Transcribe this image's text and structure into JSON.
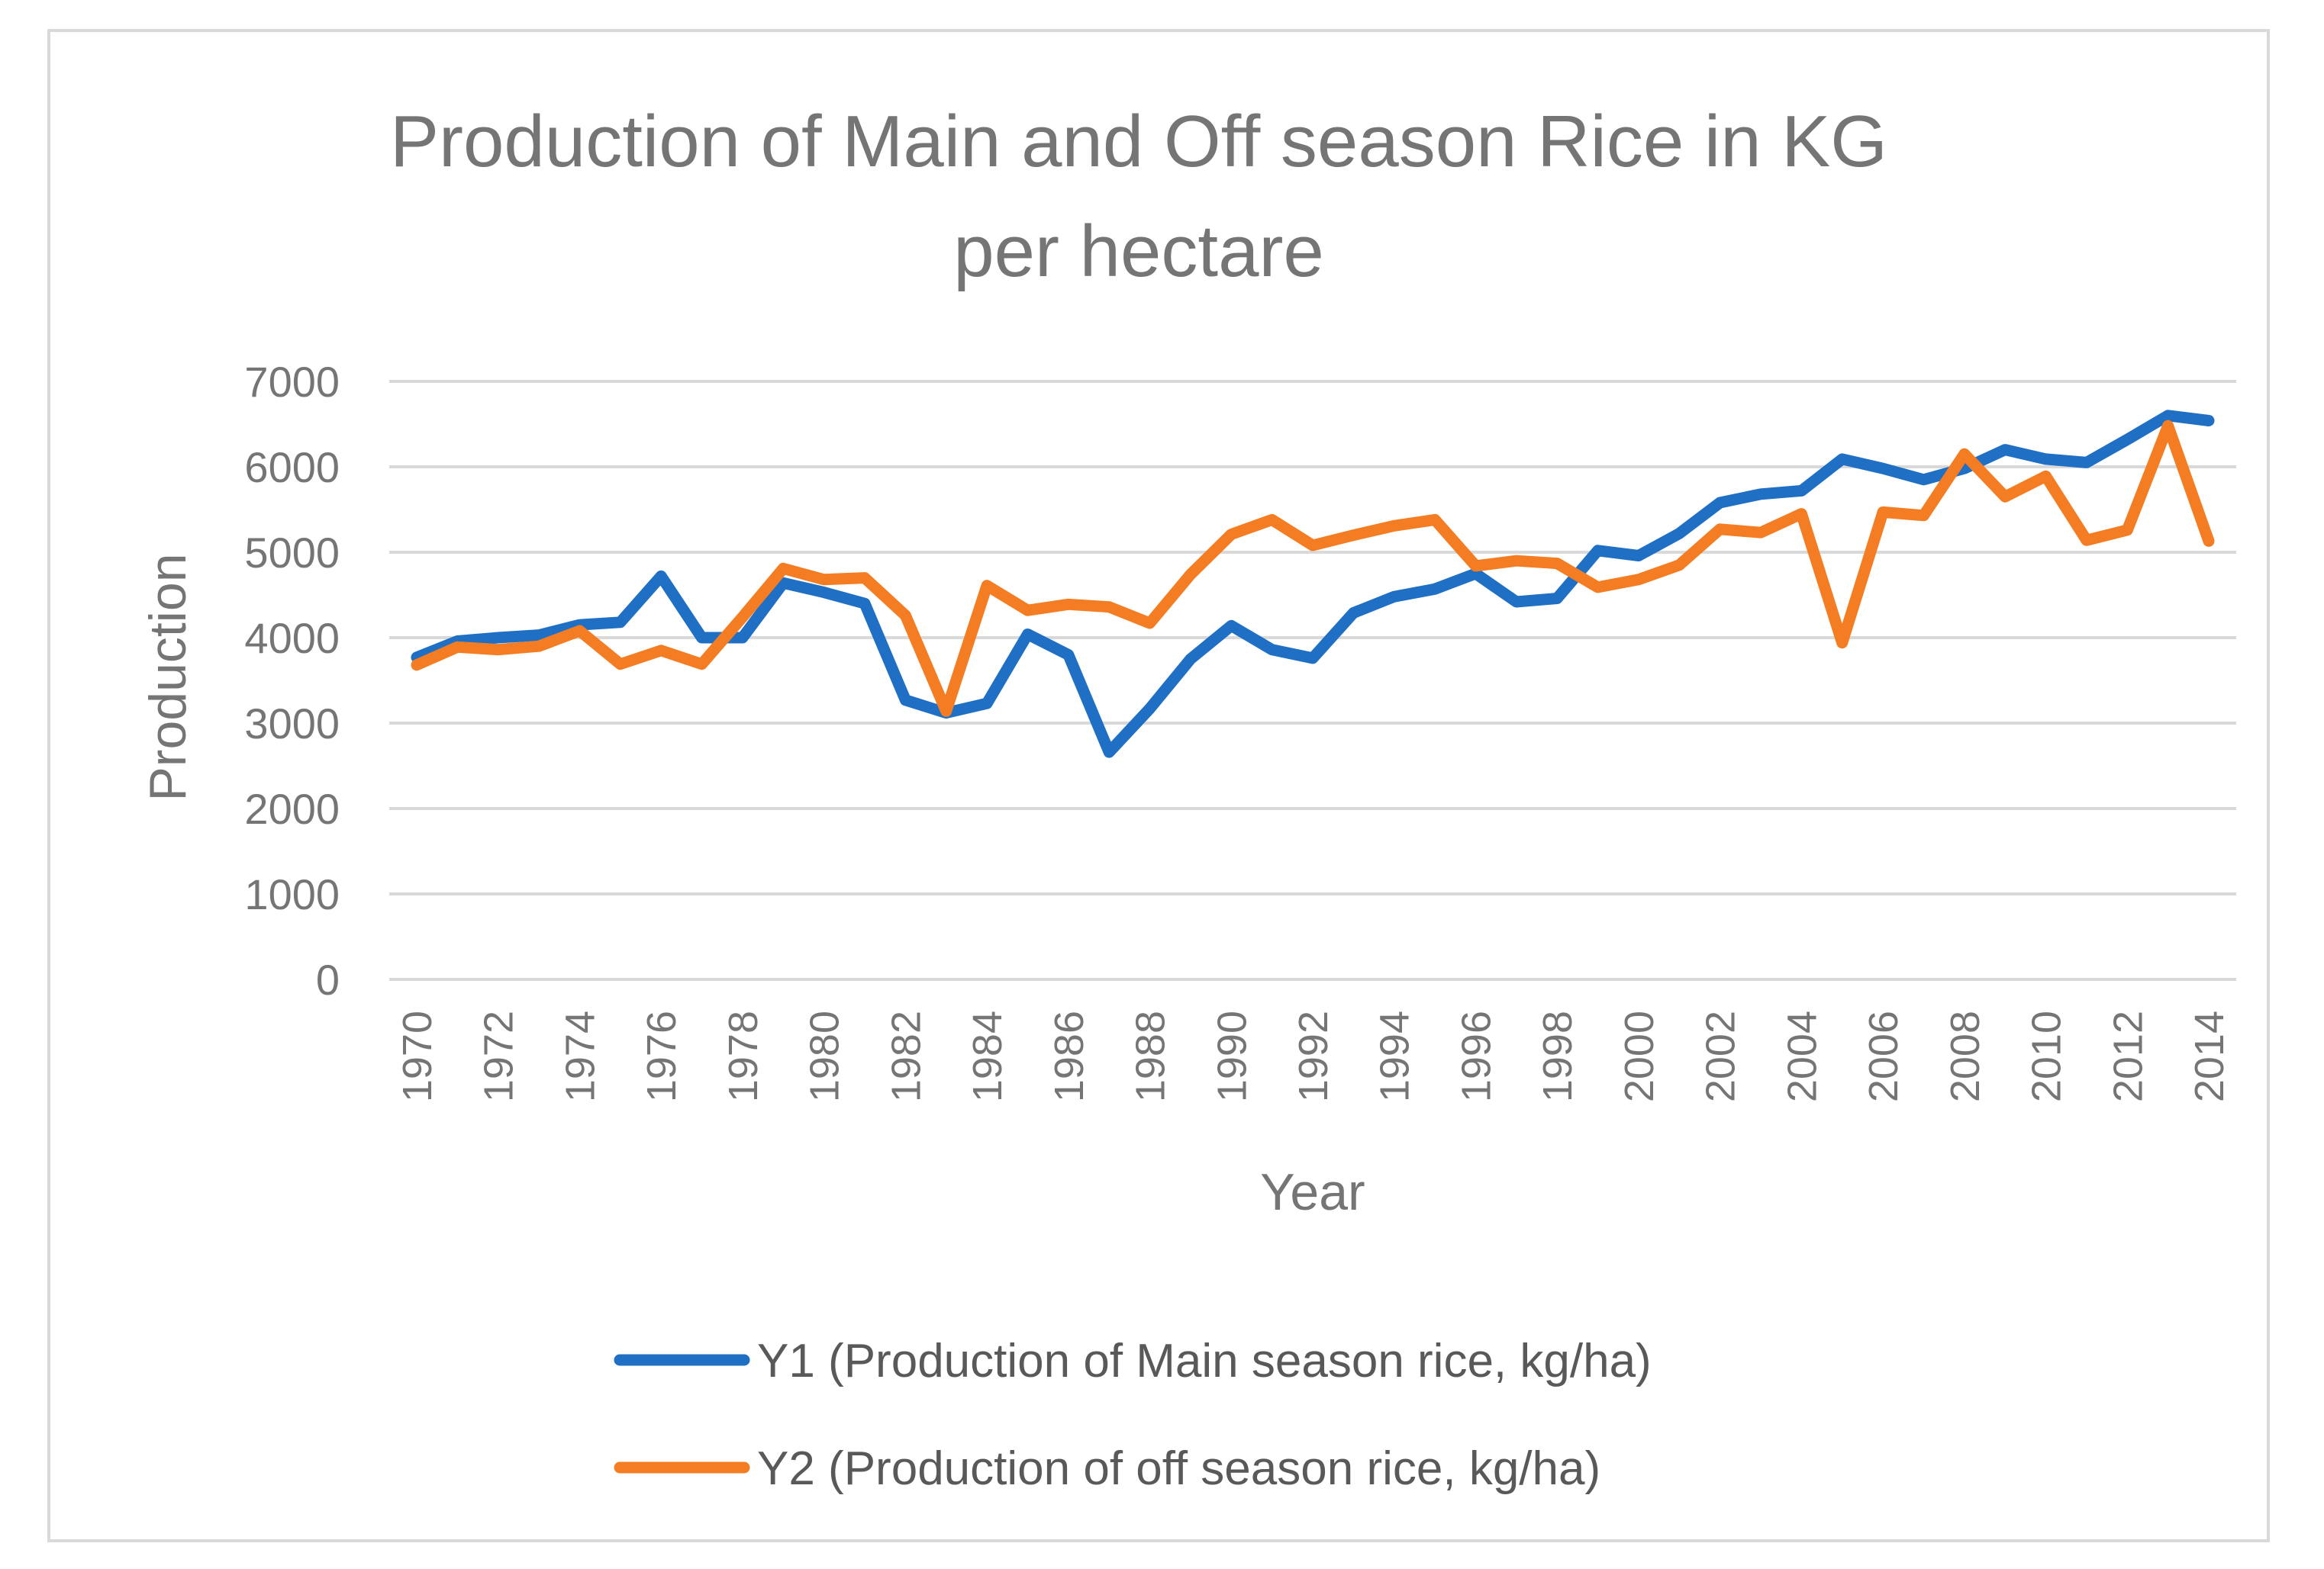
{
  "chart_data": {
    "type": "line",
    "title_lines": [
      "Production of Main and Off season Rice in KG",
      "per hectare"
    ],
    "xlabel": "Year",
    "ylabel": "Production",
    "ylim": [
      0,
      7000
    ],
    "yticks": [
      0,
      1000,
      2000,
      3000,
      4000,
      5000,
      6000,
      7000
    ],
    "x": [
      1970,
      1971,
      1972,
      1973,
      1974,
      1975,
      1976,
      1977,
      1978,
      1979,
      1980,
      1981,
      1982,
      1983,
      1984,
      1985,
      1986,
      1987,
      1988,
      1989,
      1990,
      1991,
      1992,
      1993,
      1994,
      1995,
      1996,
      1997,
      1998,
      1999,
      2000,
      2001,
      2002,
      2003,
      2004,
      2005,
      2006,
      2007,
      2008,
      2009,
      2010,
      2011,
      2012,
      2013,
      2014
    ],
    "xticks": [
      1970,
      1972,
      1974,
      1976,
      1978,
      1980,
      1982,
      1984,
      1986,
      1988,
      1990,
      1992,
      1994,
      1996,
      1998,
      2000,
      2002,
      2004,
      2006,
      2008,
      2010,
      2012,
      2014
    ],
    "grid": true,
    "legend_position": "bottom",
    "series": [
      {
        "name": "Y1 (Production of Main season rice, kg/ha)",
        "color": "#1f6fc5",
        "values": [
          3770,
          3960,
          4000,
          4030,
          4150,
          4180,
          4720,
          4000,
          4000,
          4640,
          4530,
          4400,
          3270,
          3120,
          3230,
          4040,
          3800,
          2660,
          3170,
          3750,
          4140,
          3860,
          3760,
          4290,
          4480,
          4570,
          4750,
          4420,
          4460,
          5020,
          4960,
          5220,
          5580,
          5680,
          5720,
          6090,
          5980,
          5850,
          5980,
          6200,
          6090,
          6050,
          6320,
          6600,
          6540
        ]
      },
      {
        "name": "Y2 (Production of off season rice, kg/ha)",
        "color": "#f47d23",
        "values": [
          3680,
          3890,
          3860,
          3900,
          4080,
          3690,
          3850,
          3690,
          4240,
          4810,
          4680,
          4700,
          4260,
          3140,
          4610,
          4320,
          4390,
          4360,
          4170,
          4740,
          5210,
          5380,
          5080,
          5200,
          5310,
          5380,
          4840,
          4900,
          4870,
          4590,
          4680,
          4850,
          5270,
          5230,
          5450,
          3940,
          5470,
          5430,
          6150,
          5650,
          5890,
          5140,
          5260,
          6480,
          5130
        ]
      }
    ]
  }
}
